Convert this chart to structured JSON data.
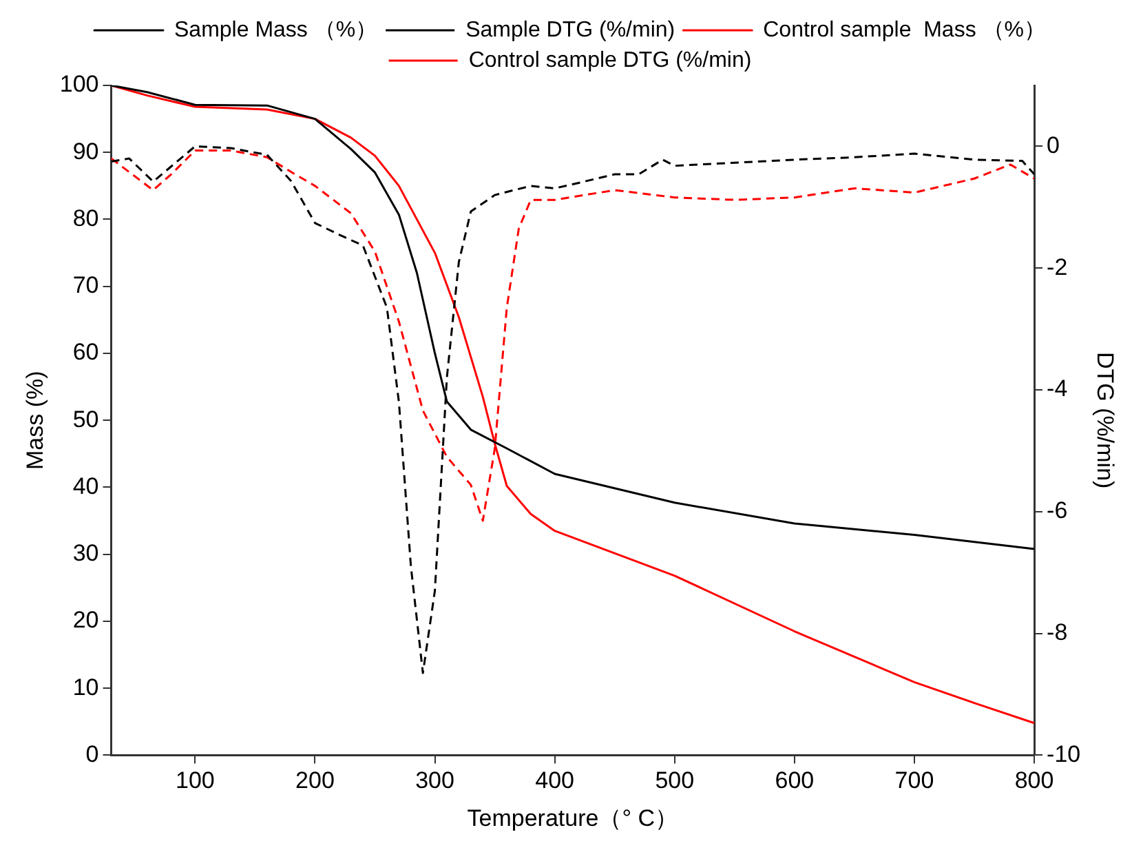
{
  "chart_data": {
    "type": "line",
    "xlabel": "Temperature（° C）",
    "ylabel": "Mass (%)",
    "y2label": "DTG (%/min)",
    "xlim": [
      30,
      800
    ],
    "xticks": [
      100,
      200,
      300,
      400,
      500,
      600,
      700,
      800
    ],
    "ylim": [
      0,
      100
    ],
    "yticks": [
      0,
      10,
      20,
      30,
      40,
      50,
      60,
      70,
      80,
      90,
      100
    ],
    "y2lim": [
      -10,
      1
    ],
    "y2ticks": [
      -10,
      -8,
      -6,
      -4,
      -2,
      0
    ],
    "grid": false,
    "legend": "top",
    "marker": "none",
    "series": [
      {
        "name": "Sample Mass （%）",
        "color": "#000000",
        "line_style": "solid",
        "x": [
          30,
          60,
          100,
          160,
          180,
          200,
          230,
          250,
          270,
          285,
          300,
          310,
          330,
          360,
          400,
          500,
          600,
          700,
          800
        ],
        "values": [
          100,
          99,
          97.1,
          97,
          96,
          95,
          90.5,
          87,
          80.7,
          72,
          60,
          52.8,
          48.6,
          45.8,
          42,
          37.7,
          34.6,
          32.9,
          30.8
        ]
      },
      {
        "name": "Sample DTG (%/min)",
        "color": "#000000",
        "line_style": "dashed",
        "axis": "y2",
        "x": [
          30,
          45,
          65,
          100,
          130,
          160,
          180,
          200,
          220,
          240,
          260,
          270,
          280,
          290,
          300,
          310,
          320,
          330,
          350,
          380,
          400,
          420,
          450,
          470,
          490,
          500,
          600,
          650,
          700,
          750,
          790,
          800
        ],
        "values": [
          -0.25,
          -0.2,
          -0.58,
          0,
          -0.03,
          -0.14,
          -0.57,
          -1.26,
          -1.45,
          -1.63,
          -2.65,
          -4.2,
          -6.9,
          -8.65,
          -7.3,
          -3.8,
          -1.9,
          -1.07,
          -0.8,
          -0.65,
          -0.69,
          -0.6,
          -0.46,
          -0.46,
          -0.22,
          -0.32,
          -0.22,
          -0.18,
          -0.12,
          -0.22,
          -0.24,
          -0.46
        ]
      },
      {
        "name": "Control sample  Mass （%）",
        "color": "#ff0000",
        "line_style": "solid",
        "x": [
          30,
          60,
          100,
          160,
          200,
          230,
          250,
          270,
          300,
          320,
          340,
          350,
          360,
          380,
          400,
          500,
          600,
          700,
          750,
          800
        ],
        "values": [
          100,
          98.5,
          96.8,
          96.4,
          95,
          92.2,
          89.5,
          85,
          75,
          65.4,
          53.5,
          46.5,
          40.2,
          36,
          33.5,
          26.8,
          18.5,
          10.9,
          7.8,
          4.8
        ]
      },
      {
        "name": "Control sample DTG (%/min)",
        "color": "#ff0000",
        "line_style": "dashed",
        "axis": "y2",
        "x": [
          30,
          65,
          80,
          100,
          130,
          160,
          180,
          200,
          230,
          250,
          270,
          290,
          310,
          330,
          340,
          350,
          360,
          370,
          380,
          400,
          450,
          500,
          550,
          600,
          650,
          700,
          750,
          780,
          800
        ],
        "values": [
          -0.2,
          -0.72,
          -0.46,
          -0.07,
          -0.07,
          -0.18,
          -0.42,
          -0.65,
          -1.1,
          -1.73,
          -2.88,
          -4.34,
          -5.1,
          -5.56,
          -6.15,
          -4.96,
          -2.65,
          -1.35,
          -0.88,
          -0.88,
          -0.72,
          -0.84,
          -0.88,
          -0.84,
          -0.69,
          -0.76,
          -0.53,
          -0.3,
          -0.53
        ]
      }
    ]
  }
}
